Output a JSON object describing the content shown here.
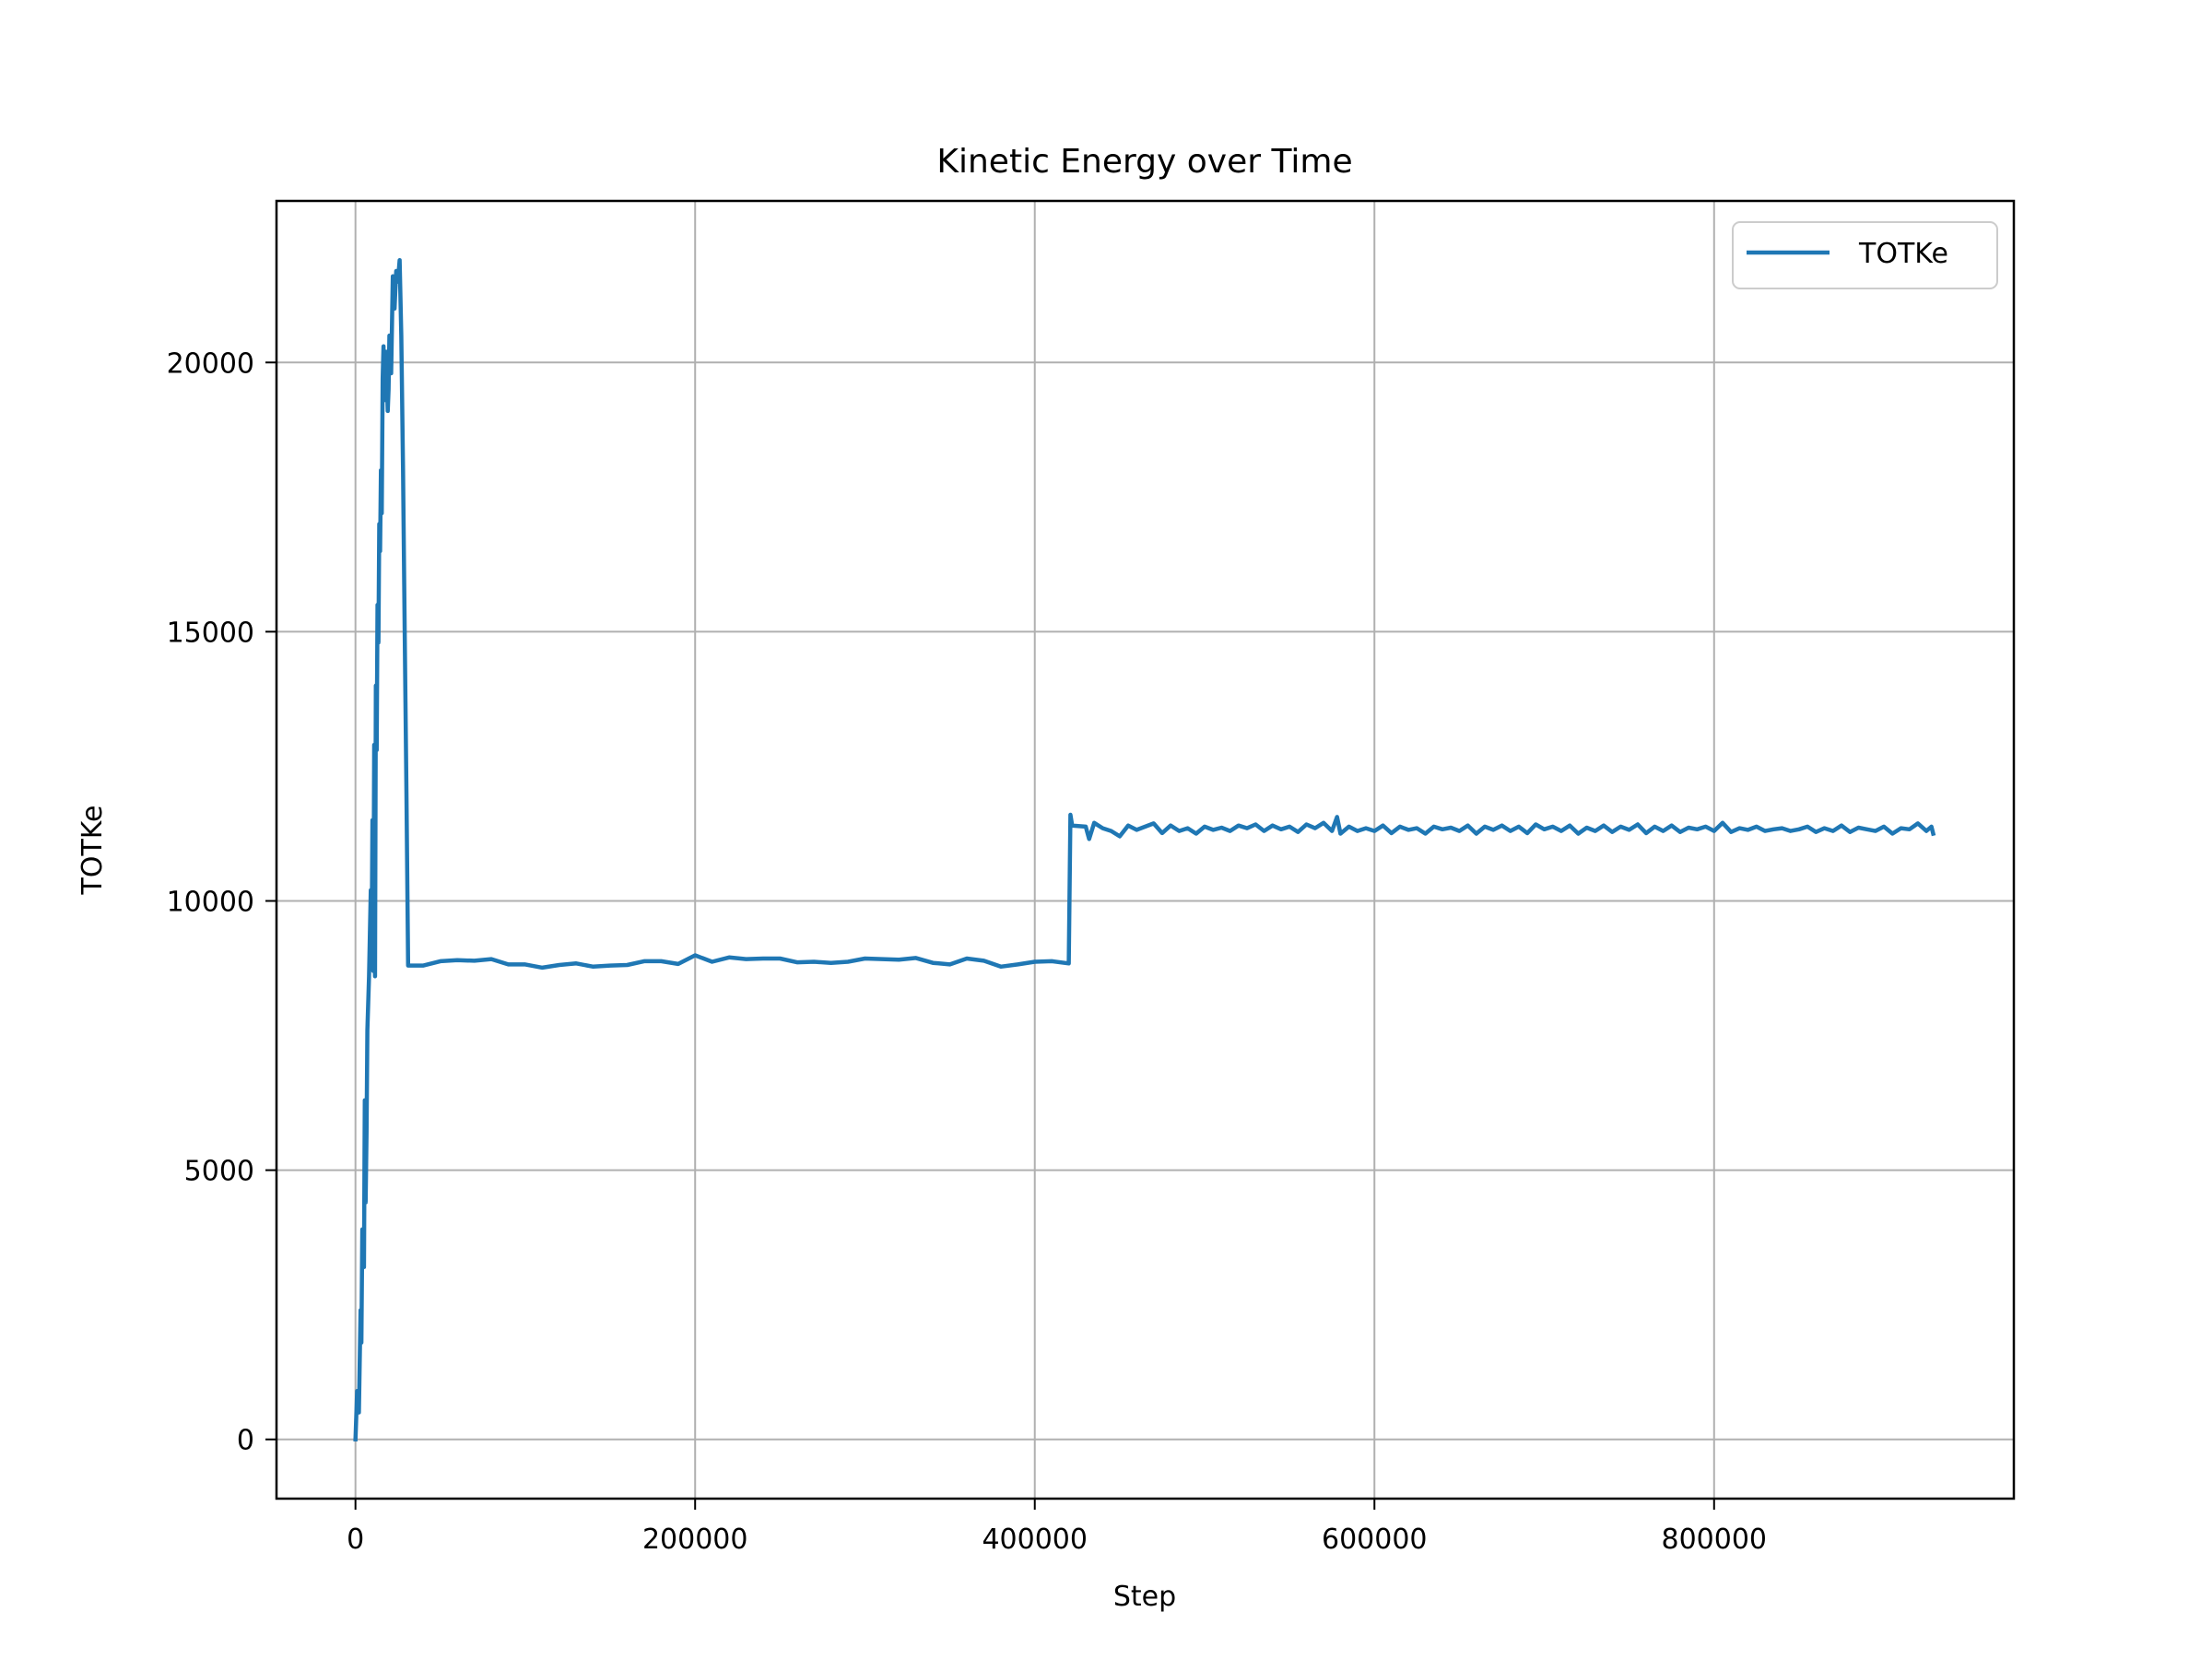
{
  "chart_data": {
    "type": "line",
    "title": "Kinetic Energy over Time",
    "xlabel": "Step",
    "ylabel": "TOTKe",
    "xlim": [
      -46500,
      976500
    ],
    "ylim": [
      -1100,
      23000
    ],
    "xticks": [
      0,
      200000,
      400000,
      600000,
      800000
    ],
    "xtick_labels": [
      "0",
      "200000",
      "400000",
      "600000",
      "800000"
    ],
    "yticks": [
      0,
      5000,
      10000,
      15000,
      20000
    ],
    "ytick_labels": [
      "0",
      "5000",
      "10000",
      "15000",
      "20000"
    ],
    "grid": true,
    "legend_position": "top-right",
    "series": [
      {
        "name": "TOTKe",
        "color": "#1f77b4",
        "points": [
          [
            0,
            0
          ],
          [
            1000,
            900
          ],
          [
            2000,
            500
          ],
          [
            3000,
            2400
          ],
          [
            3500,
            1800
          ],
          [
            4000,
            3900
          ],
          [
            5000,
            3200
          ],
          [
            5500,
            6300
          ],
          [
            6000,
            4400
          ],
          [
            6500,
            5700
          ],
          [
            7000,
            7600
          ],
          [
            8000,
            8600
          ],
          [
            9000,
            10200
          ],
          [
            9500,
            9100
          ],
          [
            10000,
            11500
          ],
          [
            10500,
            8700
          ],
          [
            11000,
            12900
          ],
          [
            11500,
            8600
          ],
          [
            12000,
            14000
          ],
          [
            12500,
            12800
          ],
          [
            13000,
            15500
          ],
          [
            13500,
            14800
          ],
          [
            14000,
            17000
          ],
          [
            14500,
            16500
          ],
          [
            15000,
            18000
          ],
          [
            15500,
            17200
          ],
          [
            16000,
            19700
          ],
          [
            16500,
            20300
          ],
          [
            17000,
            19300
          ],
          [
            18000,
            20200
          ],
          [
            19000,
            19100
          ],
          [
            19500,
            19500
          ],
          [
            20000,
            20500
          ],
          [
            21000,
            19800
          ],
          [
            22000,
            21600
          ],
          [
            23000,
            21000
          ],
          [
            24000,
            21700
          ],
          [
            25000,
            21500
          ],
          [
            26000,
            21900
          ],
          [
            27000,
            20500
          ],
          [
            28000,
            18000
          ],
          [
            29000,
            15000
          ],
          [
            30000,
            12000
          ],
          [
            31000,
            8800
          ],
          [
            40000,
            8800
          ],
          [
            50000,
            8880
          ],
          [
            60000,
            8900
          ],
          [
            70000,
            8890
          ],
          [
            80000,
            8920
          ],
          [
            90000,
            8820
          ],
          [
            100000,
            8820
          ],
          [
            110000,
            8760
          ],
          [
            120000,
            8810
          ],
          [
            130000,
            8840
          ],
          [
            140000,
            8780
          ],
          [
            150000,
            8800
          ],
          [
            160000,
            8810
          ],
          [
            170000,
            8880
          ],
          [
            180000,
            8880
          ],
          [
            190000,
            8830
          ],
          [
            200000,
            8990
          ],
          [
            210000,
            8870
          ],
          [
            220000,
            8950
          ],
          [
            230000,
            8920
          ],
          [
            240000,
            8930
          ],
          [
            250000,
            8930
          ],
          [
            260000,
            8860
          ],
          [
            270000,
            8870
          ],
          [
            280000,
            8850
          ],
          [
            290000,
            8870
          ],
          [
            300000,
            8930
          ],
          [
            310000,
            8920
          ],
          [
            320000,
            8910
          ],
          [
            330000,
            8940
          ],
          [
            340000,
            8850
          ],
          [
            350000,
            8820
          ],
          [
            360000,
            8930
          ],
          [
            370000,
            8890
          ],
          [
            380000,
            8780
          ],
          [
            390000,
            8820
          ],
          [
            400000,
            8870
          ],
          [
            410000,
            8880
          ],
          [
            420000,
            8840
          ],
          [
            421000,
            11600
          ],
          [
            422000,
            11400
          ],
          [
            430000,
            11380
          ],
          [
            432000,
            11150
          ],
          [
            435000,
            11450
          ],
          [
            440000,
            11350
          ],
          [
            445000,
            11300
          ],
          [
            450000,
            11200
          ],
          [
            455000,
            11400
          ],
          [
            460000,
            11320
          ],
          [
            465000,
            11380
          ],
          [
            470000,
            11440
          ],
          [
            475000,
            11260
          ],
          [
            480000,
            11400
          ],
          [
            485000,
            11300
          ],
          [
            490000,
            11350
          ],
          [
            495000,
            11250
          ],
          [
            500000,
            11380
          ],
          [
            505000,
            11320
          ],
          [
            510000,
            11360
          ],
          [
            515000,
            11300
          ],
          [
            520000,
            11400
          ],
          [
            525000,
            11350
          ],
          [
            530000,
            11420
          ],
          [
            535000,
            11300
          ],
          [
            540000,
            11400
          ],
          [
            545000,
            11330
          ],
          [
            550000,
            11380
          ],
          [
            555000,
            11280
          ],
          [
            560000,
            11420
          ],
          [
            565000,
            11350
          ],
          [
            570000,
            11450
          ],
          [
            575000,
            11300
          ],
          [
            578000,
            11560
          ],
          [
            580000,
            11250
          ],
          [
            585000,
            11380
          ],
          [
            590000,
            11300
          ],
          [
            595000,
            11350
          ],
          [
            600000,
            11300
          ],
          [
            605000,
            11400
          ],
          [
            610000,
            11260
          ],
          [
            615000,
            11380
          ],
          [
            620000,
            11320
          ],
          [
            625000,
            11350
          ],
          [
            630000,
            11250
          ],
          [
            635000,
            11380
          ],
          [
            640000,
            11330
          ],
          [
            645000,
            11360
          ],
          [
            650000,
            11300
          ],
          [
            655000,
            11400
          ],
          [
            660000,
            11250
          ],
          [
            665000,
            11380
          ],
          [
            670000,
            11320
          ],
          [
            675000,
            11400
          ],
          [
            680000,
            11300
          ],
          [
            685000,
            11380
          ],
          [
            690000,
            11260
          ],
          [
            695000,
            11420
          ],
          [
            700000,
            11330
          ],
          [
            705000,
            11380
          ],
          [
            710000,
            11300
          ],
          [
            715000,
            11400
          ],
          [
            720000,
            11250
          ],
          [
            725000,
            11360
          ],
          [
            730000,
            11300
          ],
          [
            735000,
            11400
          ],
          [
            740000,
            11280
          ],
          [
            745000,
            11380
          ],
          [
            750000,
            11320
          ],
          [
            755000,
            11420
          ],
          [
            760000,
            11260
          ],
          [
            765000,
            11380
          ],
          [
            770000,
            11300
          ],
          [
            775000,
            11400
          ],
          [
            780000,
            11280
          ],
          [
            785000,
            11360
          ],
          [
            790000,
            11330
          ],
          [
            795000,
            11380
          ],
          [
            800000,
            11300
          ],
          [
            805000,
            11450
          ],
          [
            810000,
            11280
          ],
          [
            815000,
            11350
          ],
          [
            820000,
            11320
          ],
          [
            825000,
            11380
          ],
          [
            830000,
            11300
          ],
          [
            835000,
            11330
          ],
          [
            840000,
            11350
          ],
          [
            845000,
            11300
          ],
          [
            850000,
            11330
          ],
          [
            855000,
            11380
          ],
          [
            860000,
            11280
          ],
          [
            865000,
            11350
          ],
          [
            870000,
            11300
          ],
          [
            875000,
            11400
          ],
          [
            880000,
            11280
          ],
          [
            885000,
            11360
          ],
          [
            890000,
            11330
          ],
          [
            895000,
            11300
          ],
          [
            900000,
            11380
          ],
          [
            905000,
            11250
          ],
          [
            910000,
            11350
          ],
          [
            915000,
            11330
          ],
          [
            920000,
            11440
          ],
          [
            925000,
            11300
          ],
          [
            928000,
            11380
          ],
          [
            929000,
            11250
          ]
        ]
      }
    ]
  }
}
